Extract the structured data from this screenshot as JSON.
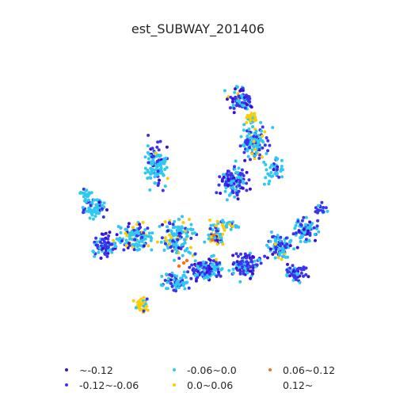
{
  "title": "est_SUBWAY_201406",
  "legend": [
    {
      "label": "~-0.12",
      "color": "#3b0fd4"
    },
    {
      "label": "-0.12~-0.06",
      "color": "#3a34ee"
    },
    {
      "label": "-0.06~0.0",
      "color": "#30c8f2"
    },
    {
      "label": "0.0~0.06",
      "color": "#fccc05"
    },
    {
      "label": "0.06~0.12",
      "color": "#f2711c"
    },
    {
      "label": "0.12~",
      "color": "#ffffff"
    }
  ],
  "chart_data": {
    "type": "scatter",
    "title": "est_SUBWAY_201406",
    "xlabel": "",
    "ylabel": "",
    "grid": false,
    "axes": "off",
    "legend_position": "bottom",
    "series": [
      {
        "name": "~-0.12",
        "color": "#3b0fd4"
      },
      {
        "name": "-0.12~-0.06",
        "color": "#3a34ee"
      },
      {
        "name": "-0.06~0.0",
        "color": "#30c8f2"
      },
      {
        "name": "0.0~0.06",
        "color": "#fccc05"
      },
      {
        "name": "0.06~0.12",
        "color": "#f2711c"
      },
      {
        "name": "0.12~",
        "color": "#ffffff"
      }
    ]
  }
}
